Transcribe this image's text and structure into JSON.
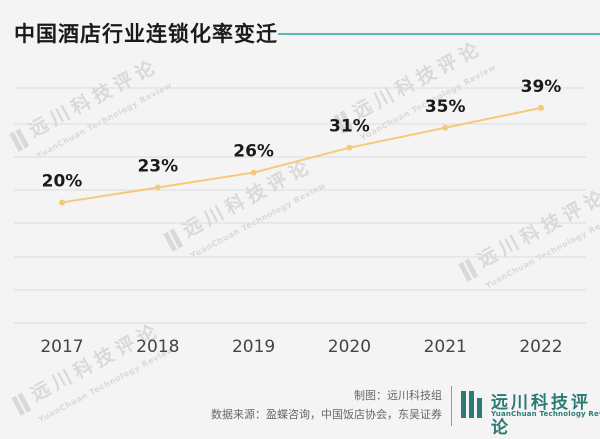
{
  "title": "中国酒店行业连锁化率变迁",
  "watermark": {
    "cn": "远川科技评论",
    "en": "YuanChuan Technology Review"
  },
  "chart_data": {
    "type": "line",
    "title": "中国酒店行业连锁化率变迁",
    "categories": [
      "2017",
      "2018",
      "2019",
      "2020",
      "2021",
      "2022"
    ],
    "values": [
      20,
      23,
      26,
      31,
      35,
      39
    ],
    "data_labels": [
      "20%",
      "23%",
      "26%",
      "31%",
      "35%",
      "39%"
    ],
    "xlabel": "",
    "ylabel": "",
    "ylim": [
      0,
      45
    ],
    "grid": true,
    "line_color": "#f5c97a",
    "grid_color": "#dcdcdc",
    "legend": "none"
  },
  "footer": {
    "credit": "制图：远川科技组",
    "source": "数据来源：盈蝶咨询，中国饭店协会，东吴证券",
    "brand_cn": "远川科技评论",
    "brand_en": "YuanChuan Technology Review"
  },
  "colors": {
    "accent": "#59b9b1",
    "brand": "#2b7a74"
  }
}
